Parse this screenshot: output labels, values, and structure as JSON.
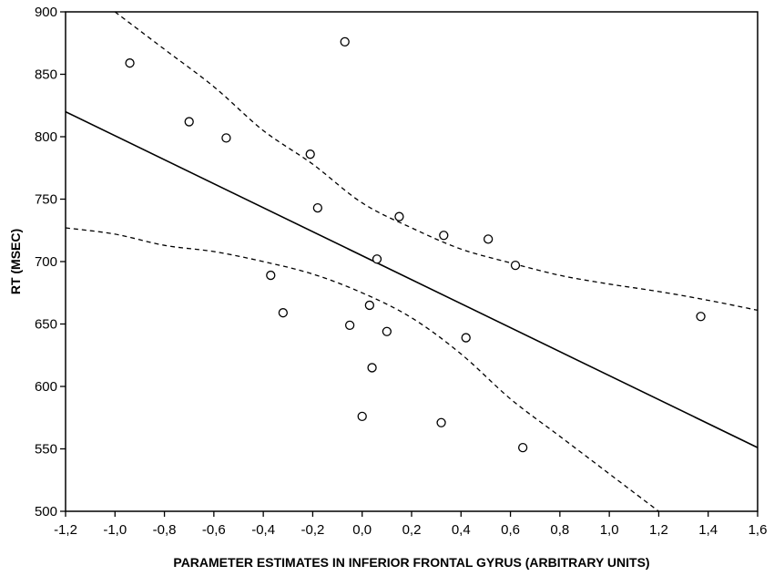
{
  "chart_data": {
    "type": "scatter",
    "xlabel": "PARAMETER ESTIMATES IN INFERIOR FRONTAL GYRUS (ARBITRARY UNITS)",
    "ylabel": "RT (MSEC)",
    "xlim": [
      -1.2,
      1.6
    ],
    "ylim": [
      500,
      900
    ],
    "x_ticks": [
      -1.2,
      -1.0,
      -0.8,
      -0.6,
      -0.4,
      -0.2,
      0.0,
      0.2,
      0.4,
      0.6,
      0.8,
      1.0,
      1.2,
      1.4,
      1.6
    ],
    "x_tick_labels": [
      "-1,2",
      "-1,0",
      "-0,8",
      "-0,6",
      "-0,4",
      "-0,2",
      "0,0",
      "0,2",
      "0,4",
      "0,6",
      "0,8",
      "1,0",
      "1,2",
      "1,4",
      "1,6"
    ],
    "y_ticks": [
      500,
      550,
      600,
      650,
      700,
      750,
      800,
      850,
      900
    ],
    "y_tick_labels": [
      "500",
      "550",
      "600",
      "650",
      "700",
      "750",
      "800",
      "850",
      "900"
    ],
    "grid": false,
    "points": [
      {
        "x": -0.94,
        "y": 859
      },
      {
        "x": -0.7,
        "y": 812
      },
      {
        "x": -0.55,
        "y": 799
      },
      {
        "x": -0.07,
        "y": 876
      },
      {
        "x": -0.21,
        "y": 786
      },
      {
        "x": -0.18,
        "y": 743
      },
      {
        "x": 0.15,
        "y": 736
      },
      {
        "x": 0.33,
        "y": 721
      },
      {
        "x": 0.51,
        "y": 718
      },
      {
        "x": 0.62,
        "y": 697
      },
      {
        "x": 0.06,
        "y": 702
      },
      {
        "x": -0.37,
        "y": 689
      },
      {
        "x": -0.32,
        "y": 659
      },
      {
        "x": 0.03,
        "y": 665
      },
      {
        "x": -0.05,
        "y": 649
      },
      {
        "x": 0.1,
        "y": 644
      },
      {
        "x": 0.42,
        "y": 639
      },
      {
        "x": 0.04,
        "y": 615
      },
      {
        "x": 0.0,
        "y": 576
      },
      {
        "x": 0.32,
        "y": 571
      },
      {
        "x": 0.65,
        "y": 551
      },
      {
        "x": 1.37,
        "y": 656
      }
    ],
    "regression_line": [
      [
        -1.2,
        820
      ],
      [
        1.6,
        551
      ]
    ],
    "ci_upper": [
      [
        -1.0,
        900
      ],
      [
        -0.8,
        870
      ],
      [
        -0.6,
        840
      ],
      [
        -0.4,
        805
      ],
      [
        -0.2,
        778
      ],
      [
        0.0,
        747
      ],
      [
        0.2,
        727
      ],
      [
        0.4,
        710
      ],
      [
        0.6,
        699
      ],
      [
        0.8,
        689
      ],
      [
        1.0,
        682
      ],
      [
        1.2,
        676
      ],
      [
        1.4,
        669
      ],
      [
        1.6,
        661
      ]
    ],
    "ci_lower": [
      [
        -1.2,
        727
      ],
      [
        -1.0,
        722
      ],
      [
        -0.8,
        713
      ],
      [
        -0.6,
        708
      ],
      [
        -0.4,
        700
      ],
      [
        -0.2,
        690
      ],
      [
        0.0,
        675
      ],
      [
        0.2,
        655
      ],
      [
        0.4,
        626
      ],
      [
        0.6,
        590
      ],
      [
        0.8,
        560
      ],
      [
        1.0,
        530
      ],
      [
        1.1,
        515
      ],
      [
        1.2,
        500
      ]
    ]
  }
}
